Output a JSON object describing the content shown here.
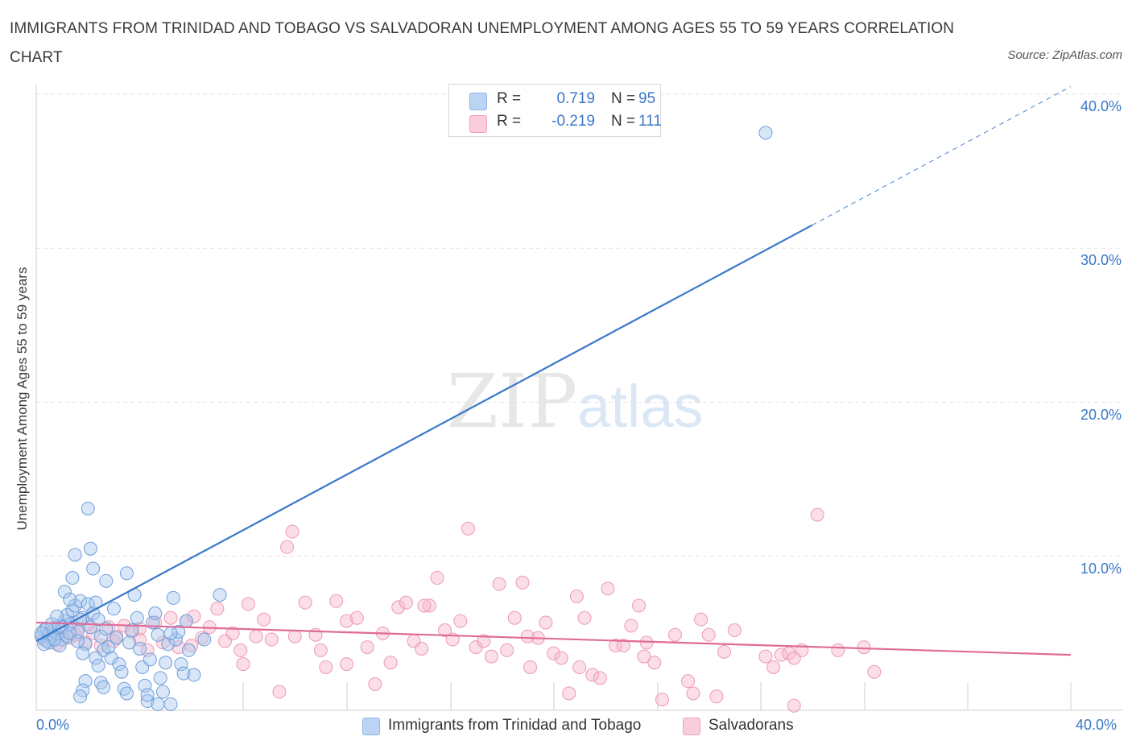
{
  "header": {
    "title": "IMMIGRANTS FROM TRINIDAD AND TOBAGO VS SALVADORAN UNEMPLOYMENT AMONG AGES 55 TO 59 YEARS CORRELATION CHART",
    "source": "Source: ZipAtlas.com"
  },
  "watermark": {
    "zip": "ZIP",
    "atlas": "atlas"
  },
  "legend": {
    "rows": [
      {
        "r_label": "R =",
        "r_value": "0.719",
        "n_label": "N =",
        "n_value": "95",
        "color": "#a8c8f0"
      },
      {
        "r_label": "R =",
        "r_value": "-0.219",
        "n_label": "N =",
        "n_value": "111",
        "color": "#f6b6c9"
      }
    ]
  },
  "bottom_legend": {
    "items": [
      {
        "label": "Immigrants from Trinidad and Tobago",
        "color": "#a8c8f0"
      },
      {
        "label": "Salvadorans",
        "color": "#f6b6c9"
      }
    ]
  },
  "chart_data": {
    "type": "scatter",
    "title": "IMMIGRANTS FROM TRINIDAD AND TOBAGO VS SALVADORAN UNEMPLOYMENT AMONG AGES 55 TO 59 YEARS CORRELATION CHART",
    "xlabel": "",
    "ylabel": "Unemployment Among Ages 55 to 59 years",
    "xlim": [
      0,
      40
    ],
    "ylim": [
      0,
      40
    ],
    "x_tick_labels": [
      "0.0%",
      "40.0%"
    ],
    "y_ticks": [
      10,
      20,
      30,
      40
    ],
    "y_tick_labels": [
      "10.0%",
      "20.0%",
      "30.0%",
      "40.0%"
    ],
    "grid": true,
    "legend_position": "top-center",
    "colors": {
      "blue": "#3a78c9",
      "blue_fill": "#a8c8f0",
      "pink": "#e06b97",
      "pink_fill": "#f6b6c9"
    },
    "series": [
      {
        "name": "Immigrants from Trinidad and Tobago",
        "color": "#3a78c9",
        "trend": {
          "x": [
            0,
            30
          ],
          "y": [
            4.5,
            31.5
          ],
          "dashed_extension": [
            30,
            40
          ]
        },
        "points": [
          [
            0.2,
            4.8
          ],
          [
            0.3,
            5.2
          ],
          [
            0.4,
            4.5
          ],
          [
            0.5,
            5.0
          ],
          [
            0.6,
            4.7
          ],
          [
            0.7,
            5.3
          ],
          [
            0.8,
            4.9
          ],
          [
            0.9,
            5.5
          ],
          [
            1.0,
            4.6
          ],
          [
            1.1,
            5.8
          ],
          [
            1.2,
            6.2
          ],
          [
            1.3,
            5.6
          ],
          [
            1.4,
            6.5
          ],
          [
            1.5,
            6.8
          ],
          [
            1.6,
            5.1
          ],
          [
            1.7,
            7.1
          ],
          [
            1.8,
            6.0
          ],
          [
            1.9,
            4.3
          ],
          [
            2.0,
            6.9
          ],
          [
            2.1,
            5.4
          ],
          [
            2.2,
            6.3
          ],
          [
            2.3,
            7.0
          ],
          [
            2.4,
            5.9
          ],
          [
            2.5,
            4.8
          ],
          [
            2.6,
            3.9
          ],
          [
            2.7,
            5.3
          ],
          [
            2.8,
            4.1
          ],
          [
            2.9,
            3.4
          ],
          [
            3.0,
            6.6
          ],
          [
            3.1,
            4.7
          ],
          [
            3.2,
            3.0
          ],
          [
            3.3,
            2.5
          ],
          [
            3.4,
            1.4
          ],
          [
            3.5,
            1.1
          ],
          [
            3.6,
            4.4
          ],
          [
            3.7,
            5.2
          ],
          [
            3.8,
            7.5
          ],
          [
            3.9,
            6.0
          ],
          [
            4.0,
            4.0
          ],
          [
            4.1,
            2.8
          ],
          [
            4.2,
            1.6
          ],
          [
            4.3,
            0.6
          ],
          [
            4.4,
            3.3
          ],
          [
            4.5,
            5.7
          ],
          [
            4.6,
            6.3
          ],
          [
            4.7,
            4.9
          ],
          [
            4.8,
            2.1
          ],
          [
            4.9,
            1.2
          ],
          [
            5.0,
            3.1
          ],
          [
            5.1,
            4.3
          ],
          [
            5.2,
            0.4
          ],
          [
            5.3,
            7.3
          ],
          [
            5.4,
            4.6
          ],
          [
            5.5,
            5.1
          ],
          [
            5.6,
            3.0
          ],
          [
            5.7,
            2.4
          ],
          [
            5.8,
            5.8
          ],
          [
            2.0,
            13.1
          ],
          [
            2.1,
            10.5
          ],
          [
            1.4,
            8.6
          ],
          [
            2.2,
            9.2
          ],
          [
            1.5,
            10.1
          ],
          [
            2.7,
            8.4
          ],
          [
            3.5,
            8.9
          ],
          [
            1.1,
            7.7
          ],
          [
            1.3,
            7.2
          ],
          [
            0.5,
            4.4
          ],
          [
            0.6,
            5.6
          ],
          [
            0.4,
            5.3
          ],
          [
            0.8,
            6.1
          ],
          [
            0.9,
            4.2
          ],
          [
            1.0,
            5.4
          ],
          [
            0.7,
            4.6
          ],
          [
            0.3,
            4.3
          ],
          [
            0.2,
            5.0
          ],
          [
            1.2,
            4.8
          ],
          [
            1.3,
            5.0
          ],
          [
            1.6,
            4.5
          ],
          [
            1.7,
            5.9
          ],
          [
            1.8,
            3.7
          ],
          [
            2.3,
            3.4
          ],
          [
            2.4,
            2.9
          ],
          [
            2.5,
            1.8
          ],
          [
            2.6,
            1.5
          ],
          [
            1.9,
            1.9
          ],
          [
            1.8,
            1.3
          ],
          [
            1.7,
            0.9
          ],
          [
            4.3,
            1.0
          ],
          [
            4.7,
            0.4
          ],
          [
            6.5,
            4.6
          ],
          [
            5.2,
            5.0
          ],
          [
            5.9,
            3.9
          ],
          [
            6.1,
            2.3
          ],
          [
            7.1,
            7.5
          ],
          [
            28.2,
            37.5
          ]
        ]
      },
      {
        "name": "Salvadorans",
        "color": "#e06b97",
        "trend": {
          "x": [
            0,
            40
          ],
          "y": [
            5.7,
            3.6
          ]
        },
        "points": [
          [
            0.3,
            4.6
          ],
          [
            0.5,
            4.9
          ],
          [
            0.8,
            4.3
          ],
          [
            1.0,
            5.1
          ],
          [
            1.3,
            4.7
          ],
          [
            1.6,
            5.3
          ],
          [
            1.9,
            4.4
          ],
          [
            2.2,
            5.0
          ],
          [
            2.5,
            4.2
          ],
          [
            2.8,
            5.4
          ],
          [
            3.1,
            4.8
          ],
          [
            3.4,
            5.5
          ],
          [
            3.7,
            5.1
          ],
          [
            4.0,
            4.6
          ],
          [
            4.3,
            3.9
          ],
          [
            4.6,
            5.7
          ],
          [
            4.9,
            4.4
          ],
          [
            5.2,
            6.0
          ],
          [
            5.5,
            4.1
          ],
          [
            5.8,
            5.8
          ],
          [
            6.1,
            6.1
          ],
          [
            6.4,
            4.7
          ],
          [
            6.7,
            5.4
          ],
          [
            7.0,
            6.6
          ],
          [
            7.3,
            4.5
          ],
          [
            7.6,
            5.0
          ],
          [
            7.9,
            3.9
          ],
          [
            8.2,
            6.9
          ],
          [
            8.5,
            4.8
          ],
          [
            8.8,
            5.9
          ],
          [
            9.1,
            4.6
          ],
          [
            9.4,
            1.2
          ],
          [
            9.7,
            10.6
          ],
          [
            9.9,
            11.6
          ],
          [
            10.4,
            7.0
          ],
          [
            10.8,
            4.9
          ],
          [
            11.0,
            3.9
          ],
          [
            11.2,
            2.8
          ],
          [
            11.6,
            7.1
          ],
          [
            12.0,
            5.8
          ],
          [
            12.4,
            6.0
          ],
          [
            12.8,
            4.1
          ],
          [
            13.1,
            1.7
          ],
          [
            13.4,
            5.0
          ],
          [
            13.7,
            3.1
          ],
          [
            14.0,
            6.7
          ],
          [
            14.3,
            7.0
          ],
          [
            14.6,
            4.5
          ],
          [
            14.9,
            4.0
          ],
          [
            15.2,
            6.8
          ],
          [
            15.5,
            8.6
          ],
          [
            15.8,
            5.2
          ],
          [
            16.1,
            4.6
          ],
          [
            16.4,
            5.8
          ],
          [
            16.7,
            11.8
          ],
          [
            17.0,
            4.1
          ],
          [
            17.3,
            4.5
          ],
          [
            17.6,
            3.5
          ],
          [
            17.9,
            8.2
          ],
          [
            18.2,
            3.9
          ],
          [
            18.5,
            6.0
          ],
          [
            18.8,
            8.3
          ],
          [
            19.1,
            2.8
          ],
          [
            19.4,
            4.7
          ],
          [
            19.7,
            5.7
          ],
          [
            20.0,
            3.7
          ],
          [
            20.3,
            3.4
          ],
          [
            20.6,
            1.1
          ],
          [
            20.9,
            7.4
          ],
          [
            21.2,
            6.0
          ],
          [
            21.5,
            2.3
          ],
          [
            21.8,
            2.1
          ],
          [
            22.1,
            7.9
          ],
          [
            22.4,
            4.2
          ],
          [
            22.7,
            4.2
          ],
          [
            23.0,
            5.5
          ],
          [
            23.3,
            6.8
          ],
          [
            23.6,
            4.4
          ],
          [
            23.9,
            3.1
          ],
          [
            24.2,
            0.7
          ],
          [
            24.7,
            4.9
          ],
          [
            25.2,
            1.9
          ],
          [
            25.4,
            1.1
          ],
          [
            25.7,
            5.9
          ],
          [
            26.0,
            4.9
          ],
          [
            26.3,
            0.9
          ],
          [
            26.6,
            3.8
          ],
          [
            28.2,
            3.5
          ],
          [
            28.5,
            2.8
          ],
          [
            28.8,
            3.6
          ],
          [
            29.1,
            3.7
          ],
          [
            29.3,
            3.4
          ],
          [
            29.6,
            3.9
          ],
          [
            30.2,
            12.7
          ],
          [
            31.0,
            3.9
          ],
          [
            29.3,
            0.3
          ],
          [
            27.0,
            5.2
          ],
          [
            23.5,
            3.5
          ],
          [
            21.0,
            2.8
          ],
          [
            19.0,
            4.8
          ],
          [
            15.0,
            6.8
          ],
          [
            12.0,
            3.0
          ],
          [
            10.0,
            4.8
          ],
          [
            8.0,
            3.0
          ],
          [
            6.0,
            4.2
          ],
          [
            4.0,
            5.3
          ],
          [
            3.0,
            4.5
          ],
          [
            2.0,
            5.6
          ],
          [
            1.5,
            4.9
          ],
          [
            32.0,
            4.1
          ],
          [
            32.4,
            2.5
          ]
        ]
      }
    ]
  }
}
